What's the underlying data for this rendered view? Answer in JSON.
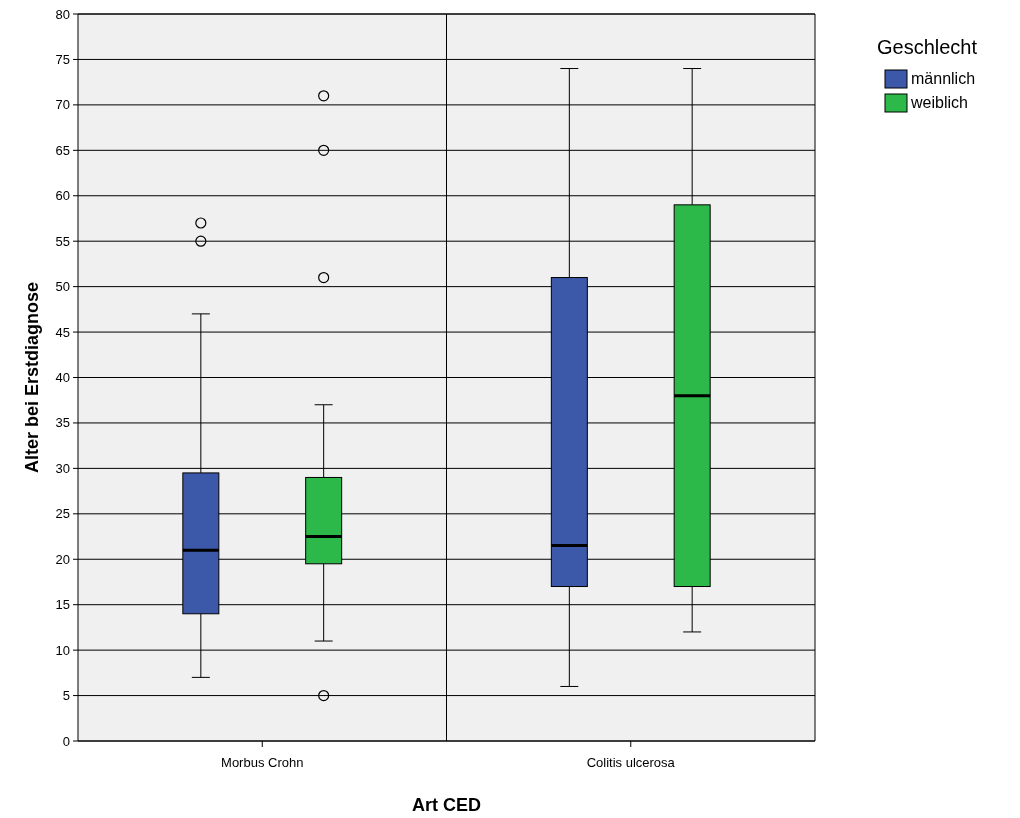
{
  "chart_data": {
    "type": "box",
    "xlabel": "Art CED",
    "ylabel": "Alter bei Erstdiagnose",
    "legend_title": "Geschlecht",
    "categories": [
      "Morbus Crohn",
      "Colitis ulcerosa"
    ],
    "ylim": [
      0,
      80
    ],
    "yticks": [
      0,
      5,
      10,
      15,
      20,
      25,
      30,
      35,
      40,
      45,
      50,
      55,
      60,
      65,
      70,
      75,
      80
    ],
    "grid": "y",
    "legend": "top right",
    "series": [
      {
        "name": "männlich",
        "color": "#3c58a8",
        "boxes": [
          {
            "low": 7,
            "q1": 14,
            "median": 21,
            "q3": 29.5,
            "high": 47,
            "outliers": [
              55,
              57
            ]
          },
          {
            "low": 6,
            "q1": 17,
            "median": 21.5,
            "q3": 51,
            "high": 74
          }
        ]
      },
      {
        "name": "weiblich",
        "color": "#2db84a",
        "boxes": [
          {
            "low": 11,
            "q1": 19.5,
            "median": 22.5,
            "q3": 29,
            "high": 37,
            "outliers": [
              5,
              51,
              65,
              71
            ]
          },
          {
            "low": 12,
            "q1": 17,
            "median": 38,
            "q3": 59,
            "high": 74
          }
        ]
      }
    ]
  }
}
